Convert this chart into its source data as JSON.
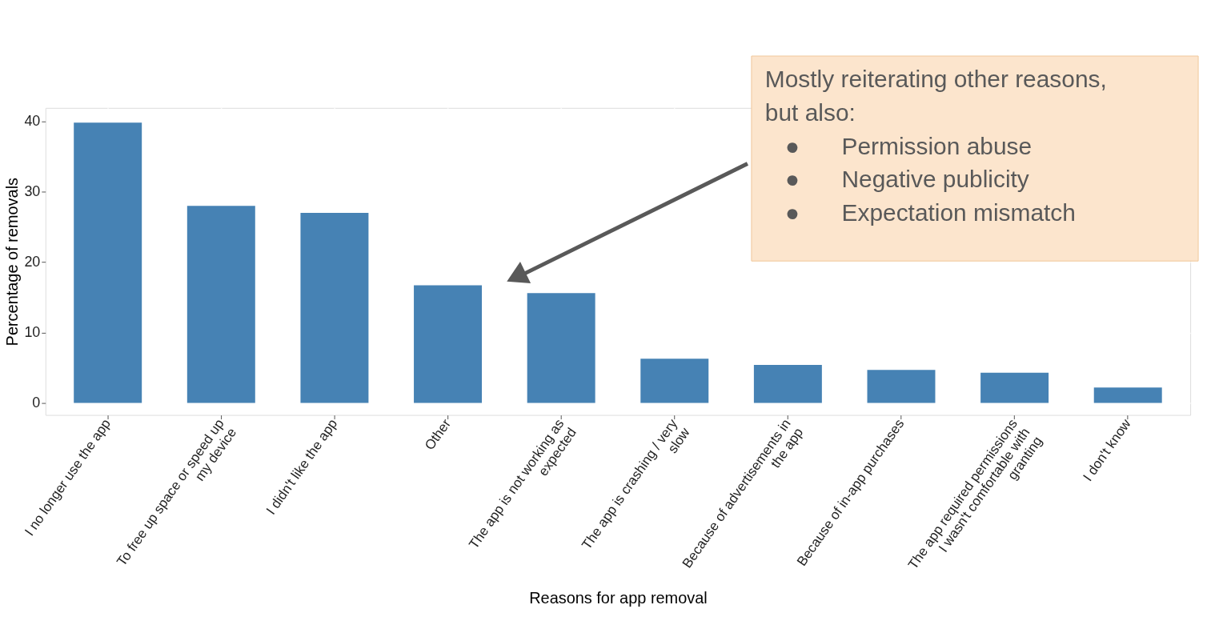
{
  "chart_data": {
    "type": "bar",
    "xlabel": "Reasons for app removal",
    "ylabel": "Percentage of removals",
    "categories": [
      "I no longer use the app",
      "To free up space or speed up my device",
      "I didn't like the app",
      "Other",
      "The app is not working as expected",
      "The app is crashing / very slow",
      "Because of advertisements in the app",
      "Because of in-app purchases",
      "The app required permissions I wasn't comfortable with granting",
      "I don't know"
    ],
    "values": [
      39.8,
      28.0,
      27.0,
      16.7,
      15.6,
      6.3,
      5.4,
      4.7,
      4.3,
      2.2
    ],
    "color": "#4682b4",
    "ylim": [
      -1.7,
      41.9
    ],
    "yticks": [
      0,
      10,
      20,
      30,
      40
    ],
    "grid": true,
    "annotations": [
      "Mostly reiterating other reasons, but also:\n●      Permission abuse\n●      Negative publicity\n●      Expectation mismatch"
    ]
  }
}
